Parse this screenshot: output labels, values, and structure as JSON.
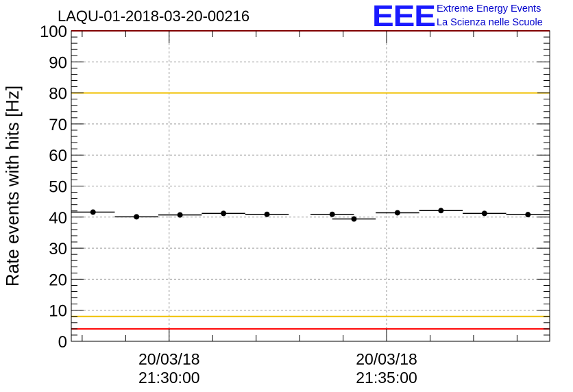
{
  "logo": {
    "mark": "EEE",
    "line1": "Extreme Energy Events",
    "line2": "La Scienza nelle Scuole"
  },
  "chart_data": {
    "type": "scatter",
    "title": "LAQU-01-2018-03-20-00216",
    "ylabel": "Rate events with hits [Hz]",
    "xlabel": "",
    "ylim": [
      0,
      100
    ],
    "yticks": [
      0,
      10,
      20,
      30,
      40,
      50,
      60,
      70,
      80,
      90,
      100
    ],
    "xlim": [
      "21:27:45",
      "21:38:45"
    ],
    "xticks": [
      {
        "date": "20/03/18",
        "time": "21:30:00"
      },
      {
        "date": "20/03/18",
        "time": "21:35:00"
      }
    ],
    "grid": true,
    "series": [
      {
        "points": [
          {
            "x": "21:28:15",
            "y": 41.6,
            "xerr_minutes": 0.5
          },
          {
            "x": "21:29:15",
            "y": 40.1,
            "xerr_minutes": 0.5
          },
          {
            "x": "21:30:15",
            "y": 40.7,
            "xerr_minutes": 0.5
          },
          {
            "x": "21:31:15",
            "y": 41.2,
            "xerr_minutes": 0.5
          },
          {
            "x": "21:32:15",
            "y": 40.9,
            "xerr_minutes": 0.5
          },
          {
            "x": "21:33:45",
            "y": 40.9,
            "xerr_minutes": 0.5
          },
          {
            "x": "21:34:15",
            "y": 39.4,
            "xerr_minutes": 0.5
          },
          {
            "x": "21:35:15",
            "y": 41.4,
            "xerr_minutes": 0.5
          },
          {
            "x": "21:36:15",
            "y": 42.1,
            "xerr_minutes": 0.5
          },
          {
            "x": "21:37:15",
            "y": 41.2,
            "xerr_minutes": 0.5
          },
          {
            "x": "21:38:15",
            "y": 40.8,
            "xerr_minutes": 0.5
          }
        ]
      }
    ],
    "reference_lines": [
      {
        "y": 100,
        "color": "#ff0000"
      },
      {
        "y": 80,
        "color": "#f0c000"
      },
      {
        "y": 8,
        "color": "#f0c000"
      },
      {
        "y": 4,
        "color": "#ff0000"
      }
    ]
  }
}
